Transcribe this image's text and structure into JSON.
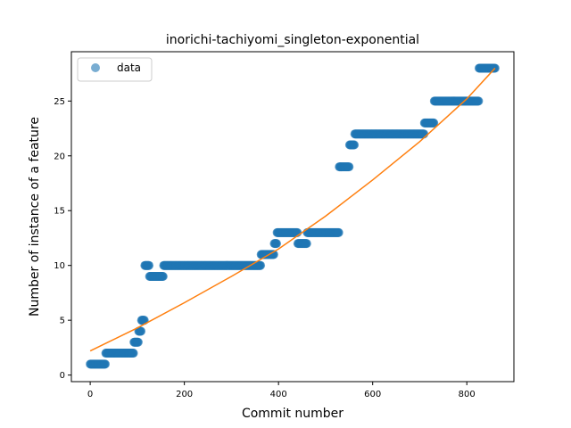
{
  "chart_data": {
    "type": "scatter",
    "title": "inorichi-tachiyomi_singleton-exponential",
    "xlabel": "Commit number",
    "ylabel": "Number of instance of a feature",
    "xlim": [
      -40,
      900
    ],
    "ylim": [
      -0.6,
      29.5
    ],
    "x_ticks": [
      0,
      200,
      400,
      600,
      800
    ],
    "y_ticks": [
      0,
      5,
      10,
      15,
      20,
      25
    ],
    "grid": false,
    "legend": {
      "placement": "top-left",
      "entries": [
        "data"
      ]
    },
    "colors": {
      "data": "#1f77b4",
      "fit": "#ff7f0e"
    },
    "series": [
      {
        "name": "data",
        "kind": "scatter",
        "segments": [
          {
            "x_start": 0,
            "x_end": 32,
            "y": 1
          },
          {
            "x_start": 33,
            "x_end": 92,
            "y": 2
          },
          {
            "x_start": 93,
            "x_end": 102,
            "y": 3
          },
          {
            "x_start": 103,
            "x_end": 108,
            "y": 4
          },
          {
            "x_start": 109,
            "x_end": 115,
            "y": 5
          },
          {
            "x_start": 116,
            "x_end": 125,
            "y": 10
          },
          {
            "x_start": 126,
            "x_end": 155,
            "y": 9
          },
          {
            "x_start": 156,
            "x_end": 362,
            "y": 10
          },
          {
            "x_start": 363,
            "x_end": 390,
            "y": 11
          },
          {
            "x_start": 391,
            "x_end": 396,
            "y": 12
          },
          {
            "x_start": 397,
            "x_end": 440,
            "y": 13
          },
          {
            "x_start": 441,
            "x_end": 460,
            "y": 12
          },
          {
            "x_start": 461,
            "x_end": 528,
            "y": 13
          },
          {
            "x_start": 529,
            "x_end": 550,
            "y": 19
          },
          {
            "x_start": 551,
            "x_end": 561,
            "y": 21
          },
          {
            "x_start": 562,
            "x_end": 709,
            "y": 22
          },
          {
            "x_start": 710,
            "x_end": 730,
            "y": 23
          },
          {
            "x_start": 731,
            "x_end": 825,
            "y": 25
          },
          {
            "x_start": 826,
            "x_end": 860,
            "y": 28
          }
        ]
      },
      {
        "kind": "line",
        "model": "exponential",
        "points": [
          [
            0,
            2.2
          ],
          [
            100,
            4.3
          ],
          [
            200,
            6.6
          ],
          [
            300,
            9.0
          ],
          [
            400,
            11.5
          ],
          [
            500,
            14.5
          ],
          [
            600,
            17.8
          ],
          [
            700,
            21.3
          ],
          [
            800,
            25.2
          ],
          [
            860,
            28.0
          ]
        ]
      }
    ]
  }
}
